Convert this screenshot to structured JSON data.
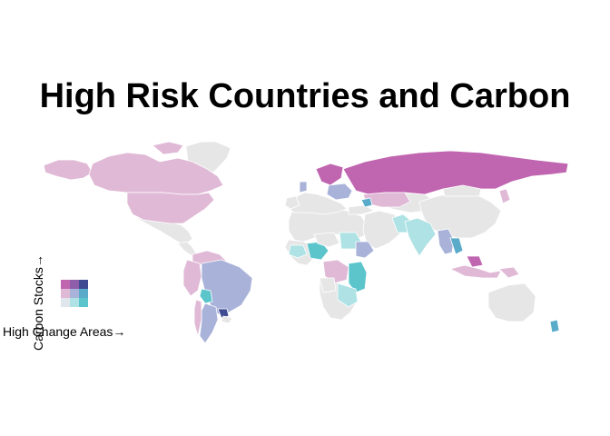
{
  "title": "High Risk Countries and Carbon",
  "legend": {
    "x_label": "High Change Areas",
    "y_label": "Carbon Stocks",
    "arrow": "→",
    "palette": [
      [
        "#dfe7ec",
        "#aee2e4",
        "#5cc5cc"
      ],
      [
        "#e0b9d6",
        "#a9b3d9",
        "#5aabca"
      ],
      [
        "#c065b0",
        "#8e5eaa",
        "#3e4b92"
      ]
    ]
  },
  "colors": {
    "no_data": "#e6e6e6",
    "border": "#ffffff",
    "background": "#ffffff"
  },
  "class_key": {
    "low_carbon_low_change": "#dfe7ec",
    "low_carbon_mid_change": "#aee2e4",
    "low_carbon_high_change": "#5cc5cc",
    "mid_carbon_low_change": "#e0b9d6",
    "mid_carbon_mid_change": "#a9b3d9",
    "mid_carbon_high_change": "#5aabca",
    "high_carbon_low_change": "#c065b0",
    "high_carbon_mid_change": "#8e5eaa",
    "high_carbon_high_change": "#3e4b92"
  }
}
